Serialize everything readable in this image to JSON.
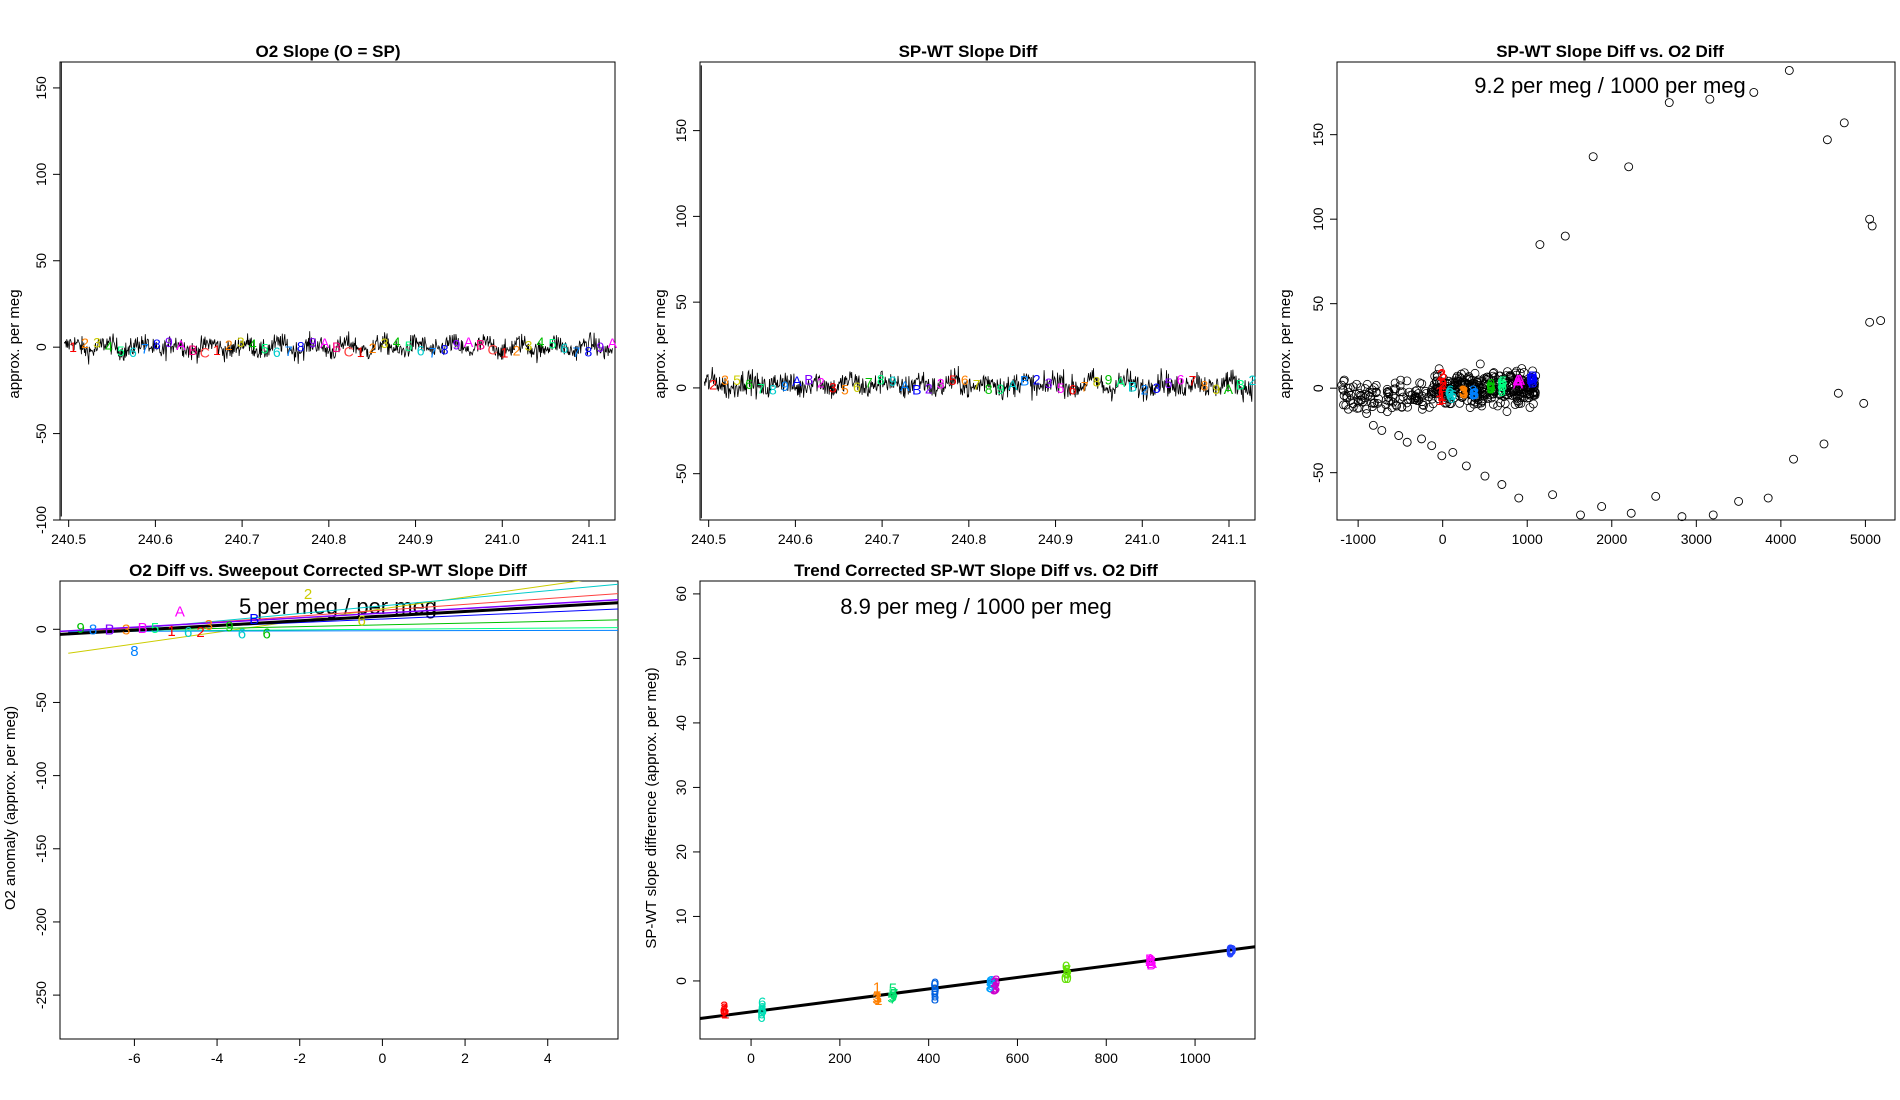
{
  "chart_data": [
    {
      "type": "line",
      "title": "O2 Slope (O = SP)",
      "xlabel": "",
      "ylabel": "approx. per meg",
      "xlim": [
        240.49,
        241.13
      ],
      "ylim": [
        -100,
        165
      ],
      "xticks": [
        240.5,
        240.6,
        240.7,
        240.8,
        240.9,
        241.0,
        241.1
      ],
      "xtick_labels": [
        "240.5",
        "240.6",
        "240.7",
        "240.8",
        "240.9",
        "241.0",
        "241.1"
      ],
      "yticks": [
        -100,
        -50,
        0,
        50,
        100,
        150
      ],
      "ytick_labels": [
        "-100",
        "-50",
        "0",
        "50",
        "100",
        "150"
      ],
      "spike": {
        "x": 240.4915,
        "ymin": -98,
        "ymax": 165
      },
      "noise_band": {
        "center": 0,
        "amplitude": 10
      },
      "marker_chars": [
        "1",
        "2",
        "3",
        "4",
        "5",
        "6",
        "7",
        "8",
        "9",
        "A",
        "B",
        "C"
      ],
      "series_colors": [
        "#ff0000",
        "#ff8000",
        "#cccc00",
        "#00c000",
        "#00ff80",
        "#00cccc",
        "#0080ff",
        "#0000ff",
        "#8000ff",
        "#ff00ff",
        "#ff0080",
        "#ff4040"
      ]
    },
    {
      "type": "line",
      "title": "SP-WT Slope Diff",
      "xlabel": "",
      "ylabel": "approx. per meg",
      "xlim": [
        240.49,
        241.13
      ],
      "ylim": [
        -77,
        190
      ],
      "xticks": [
        240.5,
        240.6,
        240.7,
        240.8,
        240.9,
        241.0,
        241.1
      ],
      "xtick_labels": [
        "240.5",
        "240.6",
        "240.7",
        "240.8",
        "240.9",
        "241.0",
        "241.1"
      ],
      "yticks": [
        -50,
        0,
        50,
        100,
        150
      ],
      "ytick_labels": [
        "-50",
        "0",
        "50",
        "100",
        "150"
      ],
      "spike": {
        "x": 240.4915,
        "ymin": -76,
        "ymax": 188
      },
      "noise_band": {
        "center": 2,
        "amplitude": 12
      },
      "marker_chars": [
        "2",
        "3",
        "5",
        "6",
        "7",
        "8",
        "9",
        "A",
        "B"
      ],
      "series_colors": [
        "#ff0000",
        "#ff8000",
        "#cccc00",
        "#00c000",
        "#00ff80",
        "#00cccc",
        "#0080ff",
        "#0000ff",
        "#8000ff",
        "#ff00ff"
      ]
    },
    {
      "type": "scatter",
      "title": "SP-WT Slope Diff vs. O2 Diff",
      "annotation": "9.2 per meg / 1000 per meg",
      "xlabel": "",
      "ylabel": "approx. per meg",
      "xlim": [
        -1250,
        5350
      ],
      "ylim": [
        -78,
        193
      ],
      "xticks": [
        -1000,
        0,
        1000,
        2000,
        3000,
        4000,
        5000
      ],
      "xtick_labels": [
        "-1000",
        "0",
        "1000",
        "2000",
        "3000",
        "4000",
        "5000"
      ],
      "yticks": [
        -50,
        0,
        50,
        100,
        150
      ],
      "ytick_labels": [
        "-50",
        "0",
        "50",
        "100",
        "150"
      ],
      "open_points": [
        [
          1150,
          85
        ],
        [
          1450,
          90
        ],
        [
          1780,
          137
        ],
        [
          2200,
          131
        ],
        [
          2680,
          169
        ],
        [
          3160,
          171
        ],
        [
          3680,
          175
        ],
        [
          4100,
          188
        ],
        [
          4550,
          147
        ],
        [
          4750,
          157
        ],
        [
          5050,
          100
        ],
        [
          5080,
          96
        ],
        [
          5050,
          39
        ],
        [
          5180,
          40
        ],
        [
          4680,
          -3
        ],
        [
          4980,
          -9
        ],
        [
          4510,
          -33
        ],
        [
          4150,
          -42
        ],
        [
          3850,
          -65
        ],
        [
          3500,
          -67
        ],
        [
          3200,
          -75
        ],
        [
          2830,
          -76
        ],
        [
          2520,
          -64
        ],
        [
          2230,
          -74
        ],
        [
          1880,
          -70
        ],
        [
          1630,
          -75
        ],
        [
          1300,
          -63
        ],
        [
          900,
          -65
        ],
        [
          700,
          -57
        ],
        [
          500,
          -52
        ],
        [
          280,
          -46
        ],
        [
          120,
          -38
        ],
        [
          -10,
          -40
        ],
        [
          -130,
          -34
        ],
        [
          -250,
          -30
        ],
        [
          -420,
          -32
        ],
        [
          -520,
          -28
        ],
        [
          -720,
          -25
        ],
        [
          -820,
          -22
        ],
        [
          -900,
          -15
        ]
      ],
      "cluster": {
        "xmin": -100,
        "xmax": 1100,
        "ymin": -20,
        "ymax": 20
      },
      "left_wing": {
        "xmin": -1200,
        "xmax": -100,
        "ymin": -25,
        "ymax": 15
      },
      "colored_labels": [
        {
          "x": 0,
          "y": 5,
          "text": "2",
          "color": "#ff0000"
        },
        {
          "x": -20,
          "y": -5,
          "text": "1",
          "color": "#ff0000"
        },
        {
          "x": 90,
          "y": -4,
          "text": "6",
          "color": "#00cccc"
        },
        {
          "x": 250,
          "y": -2,
          "text": "3",
          "color": "#ff8000"
        },
        {
          "x": 370,
          "y": -2,
          "text": "8",
          "color": "#0080ff"
        },
        {
          "x": 560,
          "y": 1,
          "text": "9",
          "color": "#00c000"
        },
        {
          "x": 700,
          "y": 2,
          "text": "5",
          "color": "#00ff80"
        },
        {
          "x": 900,
          "y": 3,
          "text": "A",
          "color": "#ff00ff"
        },
        {
          "x": 1060,
          "y": 4,
          "text": "B",
          "color": "#0000ff"
        }
      ]
    },
    {
      "type": "line",
      "title": "O2 Diff vs. Sweepout Corrected SP-WT Slope Diff",
      "annotation": "5 per meg / per meg",
      "xlabel": "",
      "ylabel": "O2 anomaly (approx. per meg)",
      "xlim": [
        -7.8,
        5.7
      ],
      "ylim": [
        -280,
        33
      ],
      "xticks": [
        -6,
        -4,
        -2,
        0,
        2,
        4
      ],
      "xtick_labels": [
        "-6",
        "-4",
        "-2",
        "0",
        "2",
        "4"
      ],
      "yticks": [
        -250,
        -200,
        -150,
        -100,
        -50,
        0
      ],
      "ytick_labels": [
        "-250",
        "-200",
        "-150",
        "-100",
        "-50",
        "0"
      ],
      "main_fit": {
        "slope": 1.6,
        "intercept": 9
      },
      "thin_fits": [
        {
          "slope": 4.0,
          "intercept": 14,
          "color": "#cccc00"
        },
        {
          "slope": 2.6,
          "intercept": 16,
          "color": "#00cccc"
        },
        {
          "slope": 2.0,
          "intercept": 13,
          "color": "#ff4040"
        },
        {
          "slope": 1.2,
          "intercept": 7,
          "color": "#0000ff"
        },
        {
          "slope": 0.6,
          "intercept": 3,
          "color": "#00c000"
        },
        {
          "slope": 0.2,
          "intercept": 0,
          "color": "#00ff80"
        },
        {
          "slope": 0.05,
          "intercept": -1,
          "color": "#0080ff"
        }
      ],
      "point_labels": [
        {
          "x": -7.3,
          "y": 1,
          "text": "9",
          "color": "#00c000"
        },
        {
          "x": -7.0,
          "y": 0,
          "text": "8",
          "color": "#0080ff"
        },
        {
          "x": -6.6,
          "y": 0,
          "text": "B",
          "color": "#8000ff"
        },
        {
          "x": -6.2,
          "y": 0,
          "text": "3",
          "color": "#ff8000"
        },
        {
          "x": -5.8,
          "y": 1,
          "text": "B",
          "color": "#ff00ff"
        },
        {
          "x": -5.5,
          "y": 1,
          "text": "5",
          "color": "#00ff80"
        },
        {
          "x": -5.1,
          "y": -1,
          "text": "1",
          "color": "#ff0000"
        },
        {
          "x": -4.9,
          "y": 12,
          "text": "A",
          "color": "#ff00ff"
        },
        {
          "x": -4.7,
          "y": -2,
          "text": "6",
          "color": "#00cccc"
        },
        {
          "x": -4.4,
          "y": -2,
          "text": "2",
          "color": "#ff0000"
        },
        {
          "x": -4.2,
          "y": 3,
          "text": "3",
          "color": "#ff8000"
        },
        {
          "x": -3.7,
          "y": 2,
          "text": "9",
          "color": "#00c000"
        },
        {
          "x": -3.4,
          "y": -3,
          "text": "6",
          "color": "#00cccc"
        },
        {
          "x": -3.1,
          "y": 7,
          "text": "B",
          "color": "#0000ff"
        },
        {
          "x": -2.8,
          "y": -3,
          "text": "6",
          "color": "#00c000"
        },
        {
          "x": -6.0,
          "y": -15,
          "text": "8",
          "color": "#0080ff"
        },
        {
          "x": -1.8,
          "y": 24,
          "text": "2",
          "color": "#cccc00"
        },
        {
          "x": -0.5,
          "y": 6,
          "text": "6",
          "color": "#cccc00"
        }
      ]
    },
    {
      "type": "scatter",
      "title": "Trend Corrected SP-WT Slope Diff vs. O2 Diff",
      "annotation": "8.9 per meg / 1000 per meg",
      "xlabel": "",
      "ylabel": "SP-WT slope difference (approx. per meg)",
      "xlim": [
        -115,
        1135
      ],
      "ylim": [
        -9,
        62
      ],
      "xticks": [
        0,
        200,
        400,
        600,
        800,
        1000
      ],
      "xtick_labels": [
        "0",
        "200",
        "400",
        "600",
        "800",
        "1000"
      ],
      "yticks": [
        0,
        10,
        20,
        30,
        40,
        50,
        60
      ],
      "ytick_labels": [
        "0",
        "10",
        "20",
        "30",
        "40",
        "50",
        "60"
      ],
      "fit": {
        "slope": 0.0089,
        "intercept": -4.8
      },
      "clusters": [
        {
          "x": -60,
          "y": -4.5,
          "spread": 1.5,
          "color": "#ff0000",
          "chars": [
            "2",
            "6",
            "1"
          ]
        },
        {
          "x": 25,
          "y": -4.5,
          "spread": 2.5,
          "color": "#00dcb4",
          "chars": [
            "6"
          ]
        },
        {
          "x": 285,
          "y": -2,
          "spread": 2,
          "color": "#ff8000",
          "chars": [
            "1",
            "3"
          ]
        },
        {
          "x": 320,
          "y": -2,
          "spread": 2,
          "color": "#00e070",
          "chars": [
            "5",
            "7"
          ]
        },
        {
          "x": 415,
          "y": -1.5,
          "spread": 2.5,
          "color": "#0060e0",
          "chars": [
            "8",
            "0"
          ]
        },
        {
          "x": 540,
          "y": -0.5,
          "spread": 1.5,
          "color": "#00a0ff",
          "chars": [
            "8",
            "0"
          ]
        },
        {
          "x": 550,
          "y": -0.5,
          "spread": 1.5,
          "color": "#cc00cc",
          "chars": [
            "3"
          ]
        },
        {
          "x": 710,
          "y": 1.5,
          "spread": 2,
          "color": "#60e000",
          "chars": [
            "0",
            "3",
            "5"
          ]
        },
        {
          "x": 900,
          "y": 3,
          "spread": 1.5,
          "color": "#ff00ff",
          "chars": [
            "B",
            "A"
          ]
        },
        {
          "x": 1080,
          "y": 4.5,
          "spread": 1.5,
          "color": "#2040ff",
          "chars": [
            "0"
          ]
        }
      ]
    }
  ]
}
